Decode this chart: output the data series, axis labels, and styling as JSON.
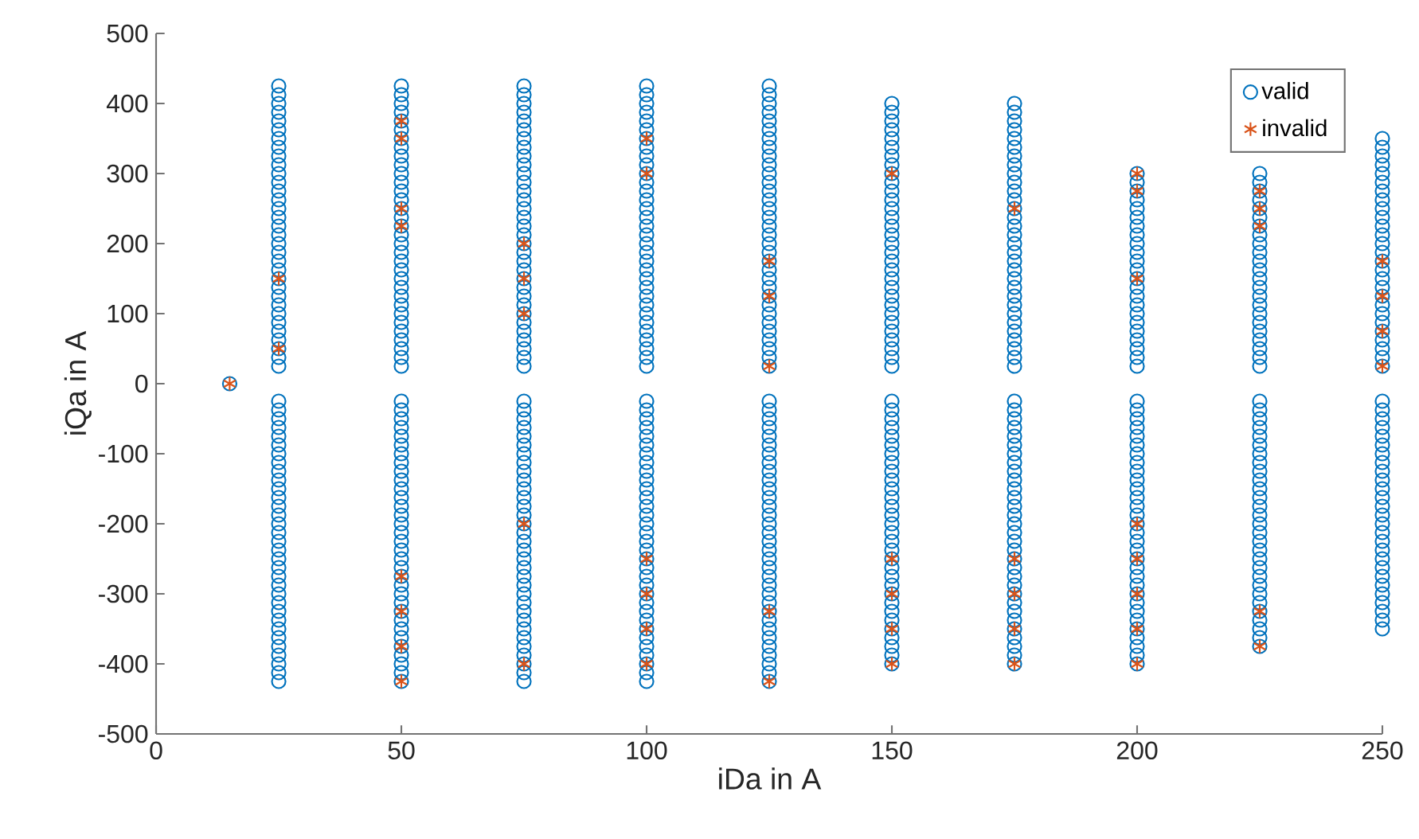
{
  "chart_data": {
    "type": "scatter",
    "xlabel": "iDa in A",
    "ylabel": "iQa in A",
    "xlim": [
      0,
      250
    ],
    "xticks": [
      0,
      50,
      100,
      150,
      200,
      250
    ],
    "ylim": [
      -500,
      500
    ],
    "yticks": [
      -500,
      -400,
      -300,
      -200,
      -100,
      0,
      100,
      200,
      300,
      400,
      500
    ],
    "legend": "top right",
    "grid": false,
    "series": [
      {
        "name": "valid",
        "color": "#0072bd",
        "marker": "circle",
        "x": [
          15,
          25,
          25,
          25,
          25,
          25,
          25,
          25,
          25,
          25,
          25,
          25,
          25,
          25,
          25,
          25,
          25,
          25,
          25,
          25,
          25,
          25,
          25,
          25,
          25,
          25,
          25,
          25,
          25,
          25,
          25,
          25,
          25,
          25,
          25,
          25,
          25,
          25,
          25,
          25,
          25,
          25,
          25,
          25,
          25,
          25,
          25,
          25,
          25,
          25,
          25,
          25,
          25,
          25,
          25,
          25,
          25,
          25,
          25,
          25,
          25,
          25,
          25,
          25,
          25,
          25,
          25,
          50,
          50,
          50,
          50,
          50,
          50,
          50,
          50,
          50,
          50,
          50,
          50,
          50,
          50,
          50,
          50,
          50,
          50,
          50,
          50,
          50,
          50,
          50,
          50,
          50,
          50,
          50,
          50,
          50,
          50,
          50,
          50,
          50,
          50,
          50,
          50,
          50,
          50,
          50,
          50,
          50,
          50,
          50,
          50,
          50,
          50,
          50,
          50,
          50,
          50,
          50,
          50,
          50,
          50,
          50,
          50,
          50,
          50,
          50,
          50,
          50,
          50,
          50,
          50,
          50,
          50,
          75,
          75,
          75,
          75,
          75,
          75,
          75,
          75,
          75,
          75,
          75,
          75,
          75,
          75,
          75,
          75,
          75,
          75,
          75,
          75,
          75,
          75,
          75,
          75,
          75,
          75,
          75,
          75,
          75,
          75,
          75,
          75,
          75,
          75,
          75,
          75,
          75,
          75,
          75,
          75,
          75,
          75,
          75,
          75,
          75,
          75,
          75,
          75,
          75,
          75,
          75,
          75,
          75,
          75,
          75,
          75,
          75,
          75,
          75,
          75,
          75,
          75,
          75,
          75,
          75,
          75,
          100,
          100,
          100,
          100,
          100,
          100,
          100,
          100,
          100,
          100,
          100,
          100,
          100,
          100,
          100,
          100,
          100,
          100,
          100,
          100,
          100,
          100,
          100,
          100,
          100,
          100,
          100,
          100,
          100,
          100,
          100,
          100,
          100,
          100,
          100,
          100,
          100,
          100,
          100,
          100,
          100,
          100,
          100,
          100,
          100,
          100,
          100,
          100,
          100,
          100,
          100,
          100,
          100,
          100,
          100,
          100,
          100,
          100,
          100,
          100,
          100,
          100,
          100,
          100,
          100,
          100,
          125,
          125,
          125,
          125,
          125,
          125,
          125,
          125,
          125,
          125,
          125,
          125,
          125,
          125,
          125,
          125,
          125,
          125,
          125,
          125,
          125,
          125,
          125,
          125,
          125,
          125,
          125,
          125,
          125,
          125,
          125,
          125,
          125,
          125,
          125,
          125,
          125,
          125,
          125,
          125,
          125,
          125,
          125,
          125,
          125,
          125,
          125,
          125,
          125,
          125,
          125,
          125,
          125,
          125,
          125,
          125,
          125,
          125,
          125,
          125,
          125,
          125,
          125,
          125,
          125,
          125,
          150,
          150,
          150,
          150,
          150,
          150,
          150,
          150,
          150,
          150,
          150,
          150,
          150,
          150,
          150,
          150,
          150,
          150,
          150,
          150,
          150,
          150,
          150,
          150,
          150,
          150,
          150,
          150,
          150,
          150,
          150,
          150,
          150,
          150,
          150,
          150,
          150,
          150,
          150,
          150,
          150,
          150,
          150,
          150,
          150,
          150,
          150,
          150,
          150,
          150,
          150,
          150,
          150,
          150,
          150,
          150,
          150,
          150,
          150,
          150,
          150,
          150,
          175,
          175,
          175,
          175,
          175,
          175,
          175,
          175,
          175,
          175,
          175,
          175,
          175,
          175,
          175,
          175,
          175,
          175,
          175,
          175,
          175,
          175,
          175,
          175,
          175,
          175,
          175,
          175,
          175,
          175,
          175,
          175,
          175,
          175,
          175,
          175,
          175,
          175,
          175,
          175,
          175,
          175,
          175,
          175,
          175,
          175,
          175,
          175,
          175,
          175,
          175,
          175,
          175,
          175,
          175,
          175,
          175,
          175,
          175,
          175,
          175,
          175,
          200,
          200,
          200,
          200,
          200,
          200,
          200,
          200,
          200,
          200,
          200,
          200,
          200,
          200,
          200,
          200,
          200,
          200,
          200,
          200,
          200,
          200,
          200,
          200,
          200,
          200,
          200,
          200,
          200,
          200,
          200,
          200,
          200,
          200,
          200,
          200,
          200,
          200,
          200,
          200,
          200,
          200,
          200,
          200,
          200,
          200,
          200,
          200,
          200,
          200,
          200,
          200,
          200,
          200,
          225,
          225,
          225,
          225,
          225,
          225,
          225,
          225,
          225,
          225,
          225,
          225,
          225,
          225,
          225,
          225,
          225,
          225,
          225,
          225,
          225,
          225,
          225,
          225,
          225,
          225,
          225,
          225,
          225,
          225,
          225,
          225,
          225,
          225,
          225,
          225,
          225,
          225,
          225,
          225,
          225,
          225,
          225,
          225,
          225,
          225,
          225,
          225,
          225,
          225,
          225,
          225,
          250,
          250,
          250,
          250,
          250,
          250,
          250,
          250,
          250,
          250,
          250,
          250,
          250,
          250,
          250,
          250,
          250,
          250,
          250,
          250,
          250,
          250,
          250,
          250,
          250,
          250,
          250,
          250,
          250,
          250,
          250,
          250,
          250,
          250,
          250,
          250,
          250,
          250,
          250,
          250,
          250,
          250,
          250,
          250,
          250,
          250,
          250,
          250,
          250,
          250,
          250,
          250,
          250,
          250
        ],
        "values": [
          0,
          25,
          37.5,
          50,
          62.5,
          75,
          87.5,
          100,
          112.5,
          125,
          137.5,
          150,
          162.5,
          175,
          187.5,
          200,
          212.5,
          225,
          237.5,
          250,
          262.5,
          275,
          287.5,
          300,
          312.5,
          325,
          337.5,
          350,
          362.5,
          375,
          387.5,
          400,
          412.5,
          425,
          -25,
          -37.5,
          -50,
          -62.5,
          -75,
          -87.5,
          -100,
          -112.5,
          -125,
          -137.5,
          -150,
          -162.5,
          -175,
          -187.5,
          -200,
          -212.5,
          -225,
          -237.5,
          -250,
          -262.5,
          -275,
          -287.5,
          -300,
          -312.5,
          -325,
          -337.5,
          -350,
          -362.5,
          -375,
          -387.5,
          -400,
          -412.5,
          -425,
          25,
          37.5,
          50,
          62.5,
          75,
          87.5,
          100,
          112.5,
          125,
          137.5,
          150,
          162.5,
          175,
          187.5,
          200,
          212.5,
          225,
          237.5,
          250,
          262.5,
          275,
          287.5,
          300,
          312.5,
          325,
          337.5,
          350,
          362.5,
          375,
          387.5,
          400,
          412.5,
          425,
          -25,
          -37.5,
          -50,
          -62.5,
          -75,
          -87.5,
          -100,
          -112.5,
          -125,
          -137.5,
          -150,
          -162.5,
          -175,
          -187.5,
          -200,
          -212.5,
          -225,
          -237.5,
          -250,
          -262.5,
          -275,
          -287.5,
          -300,
          -312.5,
          -325,
          -337.5,
          -350,
          -362.5,
          -375,
          -387.5,
          -400,
          -412.5,
          -425,
          25,
          37.5,
          50,
          62.5,
          75,
          87.5,
          100,
          112.5,
          125,
          137.5,
          150,
          162.5,
          175,
          187.5,
          200,
          212.5,
          225,
          237.5,
          250,
          262.5,
          275,
          287.5,
          300,
          312.5,
          325,
          337.5,
          350,
          362.5,
          375,
          387.5,
          400,
          412.5,
          425,
          -25,
          -37.5,
          -50,
          -62.5,
          -75,
          -87.5,
          -100,
          -112.5,
          -125,
          -137.5,
          -150,
          -162.5,
          -175,
          -187.5,
          -200,
          -212.5,
          -225,
          -237.5,
          -250,
          -262.5,
          -275,
          -287.5,
          -300,
          -312.5,
          -325,
          -337.5,
          -350,
          -362.5,
          -375,
          -387.5,
          -400,
          -412.5,
          -425,
          25,
          37.5,
          50,
          62.5,
          75,
          87.5,
          100,
          112.5,
          125,
          137.5,
          150,
          162.5,
          175,
          187.5,
          200,
          212.5,
          225,
          237.5,
          250,
          262.5,
          275,
          287.5,
          300,
          312.5,
          325,
          337.5,
          350,
          362.5,
          375,
          387.5,
          400,
          412.5,
          425,
          -25,
          -37.5,
          -50,
          -62.5,
          -75,
          -87.5,
          -100,
          -112.5,
          -125,
          -137.5,
          -150,
          -162.5,
          -175,
          -187.5,
          -200,
          -212.5,
          -225,
          -237.5,
          -250,
          -262.5,
          -275,
          -287.5,
          -300,
          -312.5,
          -325,
          -337.5,
          -350,
          -362.5,
          -375,
          -387.5,
          -400,
          -412.5,
          -425,
          25,
          37.5,
          50,
          62.5,
          75,
          87.5,
          100,
          112.5,
          125,
          137.5,
          150,
          162.5,
          175,
          187.5,
          200,
          212.5,
          225,
          237.5,
          250,
          262.5,
          275,
          287.5,
          300,
          312.5,
          325,
          337.5,
          350,
          362.5,
          375,
          387.5,
          400,
          412.5,
          425,
          -25,
          -37.5,
          -50,
          -62.5,
          -75,
          -87.5,
          -100,
          -112.5,
          -125,
          -137.5,
          -150,
          -162.5,
          -175,
          -187.5,
          -200,
          -212.5,
          -225,
          -237.5,
          -250,
          -262.5,
          -275,
          -287.5,
          -300,
          -312.5,
          -325,
          -337.5,
          -350,
          -362.5,
          -375,
          -387.5,
          -400,
          -412.5,
          -425,
          25,
          37.5,
          50,
          62.5,
          75,
          87.5,
          100,
          112.5,
          125,
          137.5,
          150,
          162.5,
          175,
          187.5,
          200,
          212.5,
          225,
          237.5,
          250,
          262.5,
          275,
          287.5,
          300,
          312.5,
          325,
          337.5,
          350,
          362.5,
          375,
          387.5,
          400,
          -25,
          -37.5,
          -50,
          -62.5,
          -75,
          -87.5,
          -100,
          -112.5,
          -125,
          -137.5,
          -150,
          -162.5,
          -175,
          -187.5,
          -200,
          -212.5,
          -225,
          -237.5,
          -250,
          -262.5,
          -275,
          -287.5,
          -300,
          -312.5,
          -325,
          -337.5,
          -350,
          -362.5,
          -375,
          -387.5,
          -400,
          25,
          37.5,
          50,
          62.5,
          75,
          87.5,
          100,
          112.5,
          125,
          137.5,
          150,
          162.5,
          175,
          187.5,
          200,
          212.5,
          225,
          237.5,
          250,
          262.5,
          275,
          287.5,
          300,
          312.5,
          325,
          337.5,
          350,
          362.5,
          375,
          387.5,
          400,
          -25,
          -37.5,
          -50,
          -62.5,
          -75,
          -87.5,
          -100,
          -112.5,
          -125,
          -137.5,
          -150,
          -162.5,
          -175,
          -187.5,
          -200,
          -212.5,
          -225,
          -237.5,
          -250,
          -262.5,
          -275,
          -287.5,
          -300,
          -312.5,
          -325,
          -337.5,
          -350,
          -362.5,
          -375,
          -387.5,
          -400,
          25,
          37.5,
          50,
          62.5,
          75,
          87.5,
          100,
          112.5,
          125,
          137.5,
          150,
          162.5,
          175,
          187.5,
          200,
          212.5,
          225,
          237.5,
          250,
          262.5,
          275,
          287.5,
          300,
          -25,
          -37.5,
          -50,
          -62.5,
          -75,
          -87.5,
          -100,
          -112.5,
          -125,
          -137.5,
          -150,
          -162.5,
          -175,
          -187.5,
          -200,
          -212.5,
          -225,
          -237.5,
          -250,
          -262.5,
          -275,
          -287.5,
          -300,
          -312.5,
          -325,
          -337.5,
          -350,
          -362.5,
          -375,
          -387.5,
          -400,
          25,
          37.5,
          50,
          62.5,
          75,
          87.5,
          100,
          112.5,
          125,
          137.5,
          150,
          162.5,
          175,
          187.5,
          200,
          212.5,
          225,
          237.5,
          250,
          262.5,
          275,
          287.5,
          300,
          -25,
          -37.5,
          -50,
          -62.5,
          -75,
          -87.5,
          -100,
          -112.5,
          -125,
          -137.5,
          -150,
          -162.5,
          -175,
          -187.5,
          -200,
          -212.5,
          -225,
          -237.5,
          -250,
          -262.5,
          -275,
          -287.5,
          -300,
          -312.5,
          -325,
          -337.5,
          -350,
          -362.5,
          -375,
          25,
          37.5,
          50,
          62.5,
          75,
          87.5,
          100,
          112.5,
          125,
          137.5,
          150,
          162.5,
          175,
          187.5,
          200,
          212.5,
          225,
          237.5,
          250,
          262.5,
          275,
          287.5,
          300,
          312.5,
          325,
          337.5,
          350,
          -25,
          -37.5,
          -50,
          -62.5,
          -75,
          -87.5,
          -100,
          -112.5,
          -125,
          -137.5,
          -150,
          -162.5,
          -175,
          -187.5,
          -200,
          -212.5,
          -225,
          -237.5,
          -250,
          -262.5,
          -275,
          -287.5,
          -300,
          -312.5,
          -325,
          -337.5,
          -350
        ]
      },
      {
        "name": "invalid",
        "color": "#d95319",
        "marker": "cross",
        "x": [
          15,
          25,
          25,
          50,
          50,
          50,
          50,
          50,
          50,
          50,
          50,
          75,
          75,
          75,
          75,
          75,
          100,
          100,
          100,
          100,
          100,
          100,
          125,
          125,
          125,
          125,
          125,
          150,
          150,
          150,
          150,
          150,
          175,
          175,
          175,
          175,
          175,
          200,
          200,
          200,
          200,
          200,
          200,
          200,
          200,
          225,
          225,
          225,
          225,
          225,
          250,
          250,
          250,
          250
        ],
        "values": [
          0,
          150,
          50,
          375,
          350,
          250,
          225,
          -275,
          -325,
          -375,
          -425,
          200,
          150,
          100,
          -200,
          -400,
          350,
          300,
          -250,
          -300,
          -350,
          -400,
          175,
          125,
          25,
          -325,
          -425,
          300,
          -250,
          -300,
          -350,
          -400,
          250,
          -250,
          -300,
          -350,
          -400,
          300,
          275,
          150,
          -200,
          -250,
          -300,
          -350,
          -400,
          275,
          250,
          225,
          -325,
          -375,
          175,
          125,
          75,
          25
        ]
      }
    ]
  }
}
